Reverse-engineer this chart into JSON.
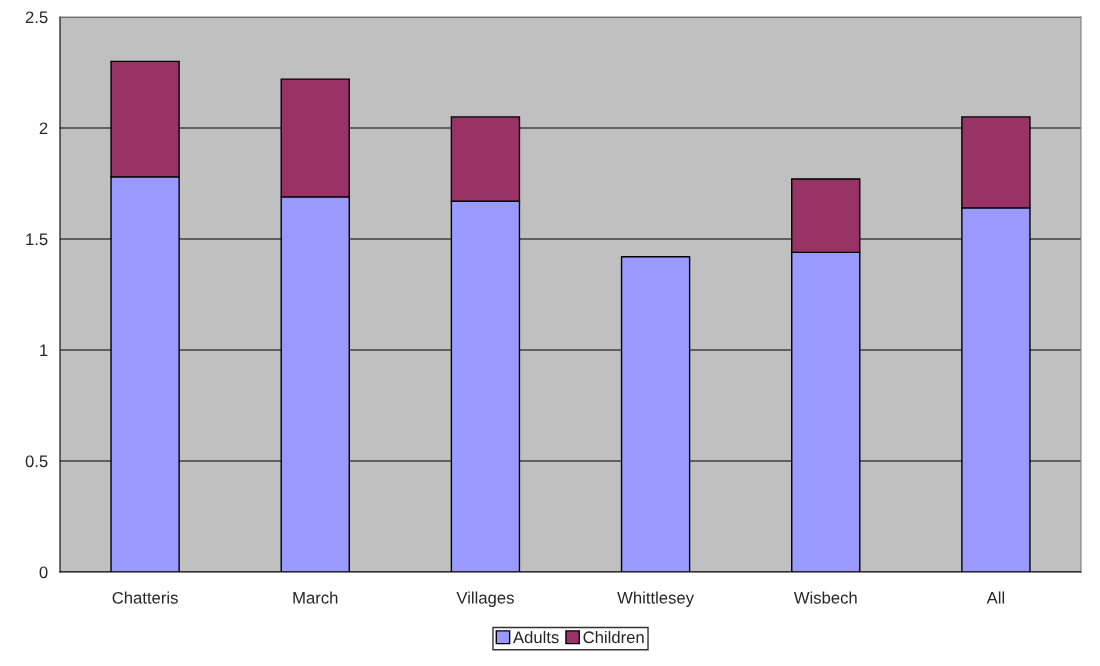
{
  "chart_data": {
    "type": "bar",
    "stacked": true,
    "categories": [
      "Chatteris",
      "March",
      "Villages",
      "Whittlesey",
      "Wisbech",
      "All"
    ],
    "series": [
      {
        "name": "Adults",
        "color": "#9999ff",
        "values": [
          1.78,
          1.69,
          1.67,
          1.42,
          1.44,
          1.64
        ]
      },
      {
        "name": "Children",
        "color": "#993366",
        "values": [
          0.52,
          0.53,
          0.38,
          null,
          0.33,
          0.41
        ]
      }
    ],
    "ylim": [
      0,
      2.5
    ],
    "yticks": [
      0,
      0.5,
      1,
      1.5,
      2,
      2.5
    ],
    "grid": "y",
    "legend": "bottom"
  }
}
